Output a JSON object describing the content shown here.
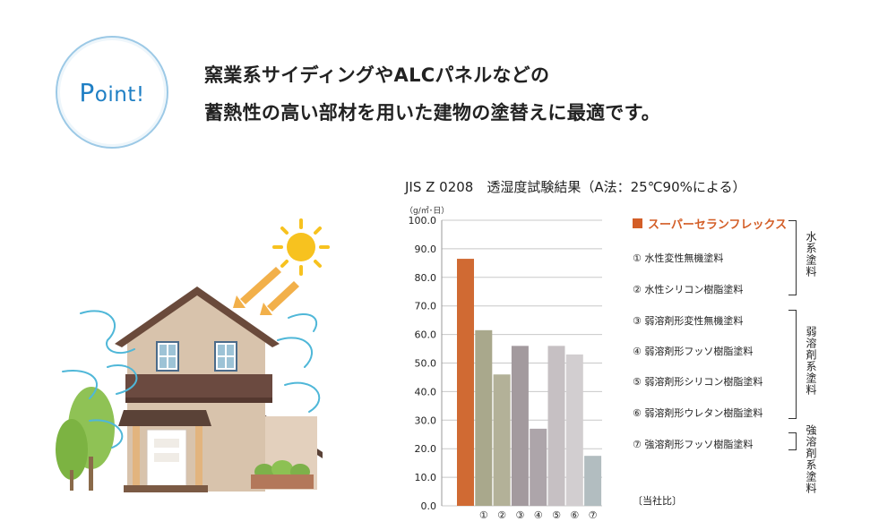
{
  "point": {
    "label_p": "P",
    "label_rest": "oint!"
  },
  "headline": {
    "line1": "窯業系サイディングやALCパネルなどの",
    "line2": "蓄熱性の高い部材を用いた建物の塗替えに最適です。"
  },
  "colors": {
    "accent": "#d35e27",
    "point_blue": "#1f7fc4"
  },
  "chart_data": {
    "type": "bar",
    "title": "JIS Z 0208　透湿度試験結果（A法：25℃90%による）",
    "ylabel": "（g/㎡･日）",
    "ylim": [
      0,
      100
    ],
    "yticks": [
      "0.0",
      "10.0",
      "20.0",
      "30.0",
      "40.0",
      "50.0",
      "60.0",
      "70.0",
      "80.0",
      "90.0",
      "100.0"
    ],
    "grid": true,
    "categories": [
      "",
      "①",
      "②",
      "③",
      "④",
      "⑤",
      "⑥",
      "⑦"
    ],
    "values": [
      86.5,
      61.5,
      46.0,
      56.0,
      27.0,
      56.0,
      53.0,
      17.5
    ],
    "bar_colors": [
      "#d06a33",
      "#a9a88c",
      "#b3b198",
      "#a39a9e",
      "#ada5aa",
      "#c6c0c3",
      "#d2ced0",
      "#b2bdc0"
    ],
    "legend": {
      "main": "スーパーセランフレックス",
      "items": [
        "① 水性変性無機塗料",
        "② 水性シリコン樹脂塗料",
        "③ 弱溶剤形変性無機塗料",
        "④ 弱溶剤形フッソ樹脂塗料",
        "⑤ 弱溶剤形シリコン樹脂塗料",
        "⑥ 弱溶剤形ウレタン樹脂塗料",
        "⑦ 強溶剤形フッソ樹脂塗料"
      ],
      "groups": [
        "水系塗料",
        "弱溶剤系塗料",
        "強溶剤系塗料"
      ]
    },
    "note": "〔当社比〕"
  }
}
